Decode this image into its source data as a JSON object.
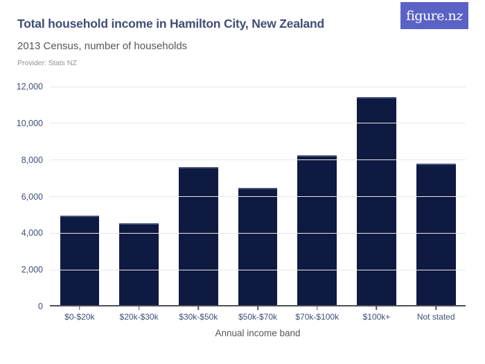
{
  "header": {
    "title": "Total household income in Hamilton City, New Zealand",
    "subtitle": "2013 Census, number of households",
    "provider": "Provider: Stats NZ",
    "logo_text_main": "figure.n",
    "logo_text_z": "z"
  },
  "colors": {
    "bar": "#0e1a41",
    "bar_top_edge": "#47547a",
    "title": "#3f4e75",
    "axis_label": "#3f4e75",
    "subtitle": "#55555e",
    "provider": "#8f8f97",
    "gridline": "#e8e8eb",
    "axis_line": "#4d5057",
    "logo_bg": "#5a62c6",
    "logo_text": "#ffffff"
  },
  "chart_data": {
    "type": "bar",
    "title": "Total household income in Hamilton City, New Zealand",
    "subtitle": "2013 Census, number of households",
    "xlabel": "Annual income band",
    "ylabel": "",
    "categories": [
      "$0-$20k",
      "$20k-$30k",
      "$30k-$50k",
      "$50k-$70k",
      "$70k-$100k",
      "$100k+",
      "Not stated"
    ],
    "values": [
      4880,
      4460,
      7530,
      6380,
      8160,
      11340,
      7740
    ],
    "ylim": [
      0,
      12000
    ],
    "yticks": [
      0,
      2000,
      4000,
      6000,
      8000,
      10000,
      12000
    ],
    "ytick_labels": [
      "0",
      "2,000",
      "4,000",
      "6,000",
      "8,000",
      "10,000",
      "12,000"
    ],
    "grid": true,
    "legend": false,
    "bar_color": "#0e1a41"
  }
}
